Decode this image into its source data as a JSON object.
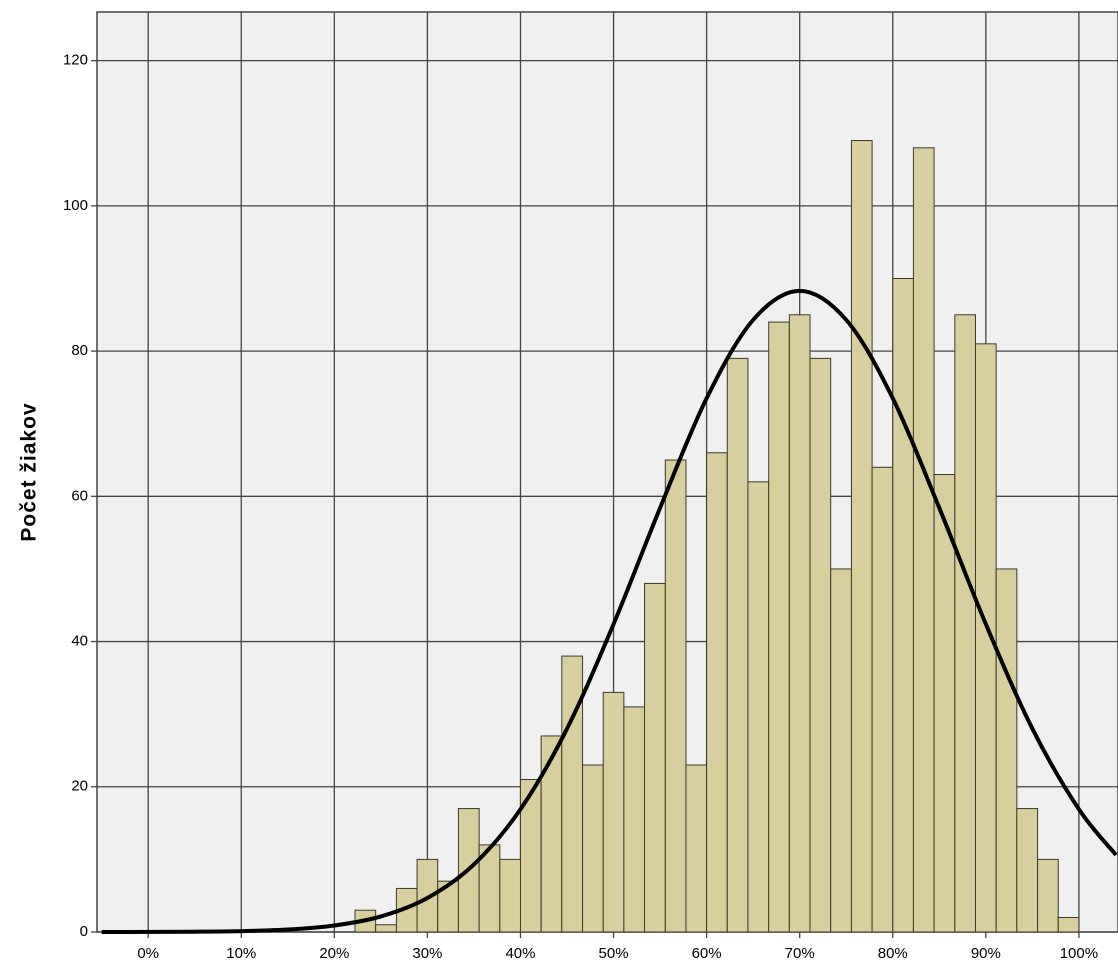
{
  "chart_data": {
    "type": "histogram",
    "y_label": "Počet žiakov",
    "bins": [
      22.22,
      24.44,
      26.67,
      28.89,
      31.11,
      33.33,
      35.56,
      37.78,
      40.0,
      42.22,
      44.44,
      46.67,
      48.89,
      51.11,
      53.33,
      55.56,
      57.78,
      60.0,
      62.22,
      64.44,
      66.67,
      68.89,
      71.11,
      73.33,
      75.56,
      77.78,
      80.0,
      82.22,
      84.44,
      86.67,
      88.89,
      91.11,
      93.33,
      95.56,
      97.78,
      100.0
    ],
    "values": [
      3,
      1,
      6,
      10,
      7,
      17,
      12,
      10,
      21,
      27,
      38,
      23,
      33,
      31,
      48,
      65,
      23,
      66,
      79,
      62,
      84,
      85,
      79,
      50,
      109,
      64,
      90,
      108,
      63,
      85,
      81,
      50,
      17,
      10,
      2
    ],
    "color": "#d7d09e",
    "curve": {
      "x": [
        -5,
        0,
        5,
        10,
        15,
        20,
        25,
        30,
        35,
        40,
        45,
        50,
        55,
        60,
        65,
        70,
        75,
        80,
        85,
        90,
        95,
        100,
        104
      ],
      "values": [
        0.003,
        0.011,
        0.038,
        0.12,
        0.34,
        0.9,
        2.14,
        4.68,
        9.31,
        16.9,
        28.0,
        42.4,
        58.4,
        73.5,
        84.3,
        88.3,
        84.3,
        73.5,
        58.4,
        42.4,
        28.0,
        16.9,
        10.6
      ],
      "color": "#000000"
    },
    "xlim": [
      -5.5,
      104.2
    ],
    "ylim": [
      0,
      126.7
    ],
    "xticks": [
      {
        "value": 0,
        "label": "0%"
      },
      {
        "value": 10,
        "label": "10%"
      },
      {
        "value": 20,
        "label": "20%"
      },
      {
        "value": 30,
        "label": "30%"
      },
      {
        "value": 40,
        "label": "40%"
      },
      {
        "value": 50,
        "label": "50%"
      },
      {
        "value": 60,
        "label": "60%"
      },
      {
        "value": 70,
        "label": "70%"
      },
      {
        "value": 80,
        "label": "80%"
      },
      {
        "value": 90,
        "label": "90%"
      },
      {
        "value": 100,
        "label": "100%"
      }
    ],
    "yticks": [
      0,
      20,
      40,
      60,
      80,
      100,
      120
    ],
    "grid": true
  }
}
